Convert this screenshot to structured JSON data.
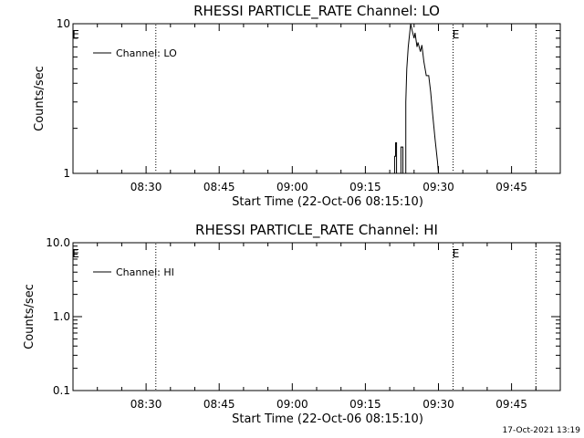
{
  "chart_data": [
    {
      "type": "line",
      "title": "RHESSI PARTICLE_RATE Channel: LO",
      "xlabel": "Start Time (22-Oct-06 08:15:10)",
      "ylabel": "Counts/sec",
      "yscale": "log",
      "ylim": [
        1,
        10
      ],
      "yticks": [
        "1",
        "10"
      ],
      "xlim_minutes": [
        0,
        100
      ],
      "xticks": [
        "08:30",
        "08:45",
        "09:00",
        "09:15",
        "09:30",
        "09:45"
      ],
      "xtick_minutes": [
        15,
        30,
        45,
        60,
        75,
        90
      ],
      "event_lines_minutes": [
        17,
        78,
        95
      ],
      "event_markers": [
        {
          "label": "E",
          "minute": 0
        },
        {
          "label": "E",
          "minute": 78
        }
      ],
      "legend_position": "top-left",
      "series": [
        {
          "name": "Channel: LO",
          "x": [
            66.0,
            66.0,
            66.2,
            66.2,
            66.4,
            66.4,
            67.3,
            67.3,
            67.7,
            67.7,
            68.3,
            68.3,
            68.5,
            68.8,
            69.3,
            69.6,
            70.0,
            70.2,
            70.6,
            70.8,
            71.3,
            71.6,
            72.0,
            72.5,
            73.0,
            73.4,
            73.8,
            74.3,
            74.8,
            75.0
          ],
          "y": [
            1.0,
            1.3,
            1.3,
            1.6,
            1.6,
            1.0,
            1.0,
            1.5,
            1.5,
            1.0,
            1.0,
            3.0,
            5.0,
            7.0,
            10.0,
            9.0,
            8.0,
            8.7,
            7.0,
            7.5,
            6.5,
            7.2,
            5.6,
            4.5,
            4.5,
            3.5,
            2.5,
            1.7,
            1.2,
            1.0
          ]
        }
      ]
    },
    {
      "type": "line",
      "title": "RHESSI PARTICLE_RATE Channel: HI",
      "xlabel": "Start Time (22-Oct-06 08:15:10)",
      "ylabel": "Counts/sec",
      "yscale": "log",
      "ylim": [
        0.1,
        10
      ],
      "yticks": [
        "0.1",
        "1.0",
        "10.0"
      ],
      "xlim_minutes": [
        0,
        100
      ],
      "xticks": [
        "08:30",
        "08:45",
        "09:00",
        "09:15",
        "09:30",
        "09:45"
      ],
      "xtick_minutes": [
        15,
        30,
        45,
        60,
        75,
        90
      ],
      "event_lines_minutes": [
        17,
        78,
        95
      ],
      "event_markers": [
        {
          "label": "E",
          "minute": 0
        },
        {
          "label": "E",
          "minute": 78
        }
      ],
      "legend_position": "top-left",
      "series": [
        {
          "name": "Channel: HI",
          "x": [],
          "y": []
        }
      ]
    }
  ],
  "footer": {
    "timestamp": "17-Oct-2021 13:19"
  }
}
